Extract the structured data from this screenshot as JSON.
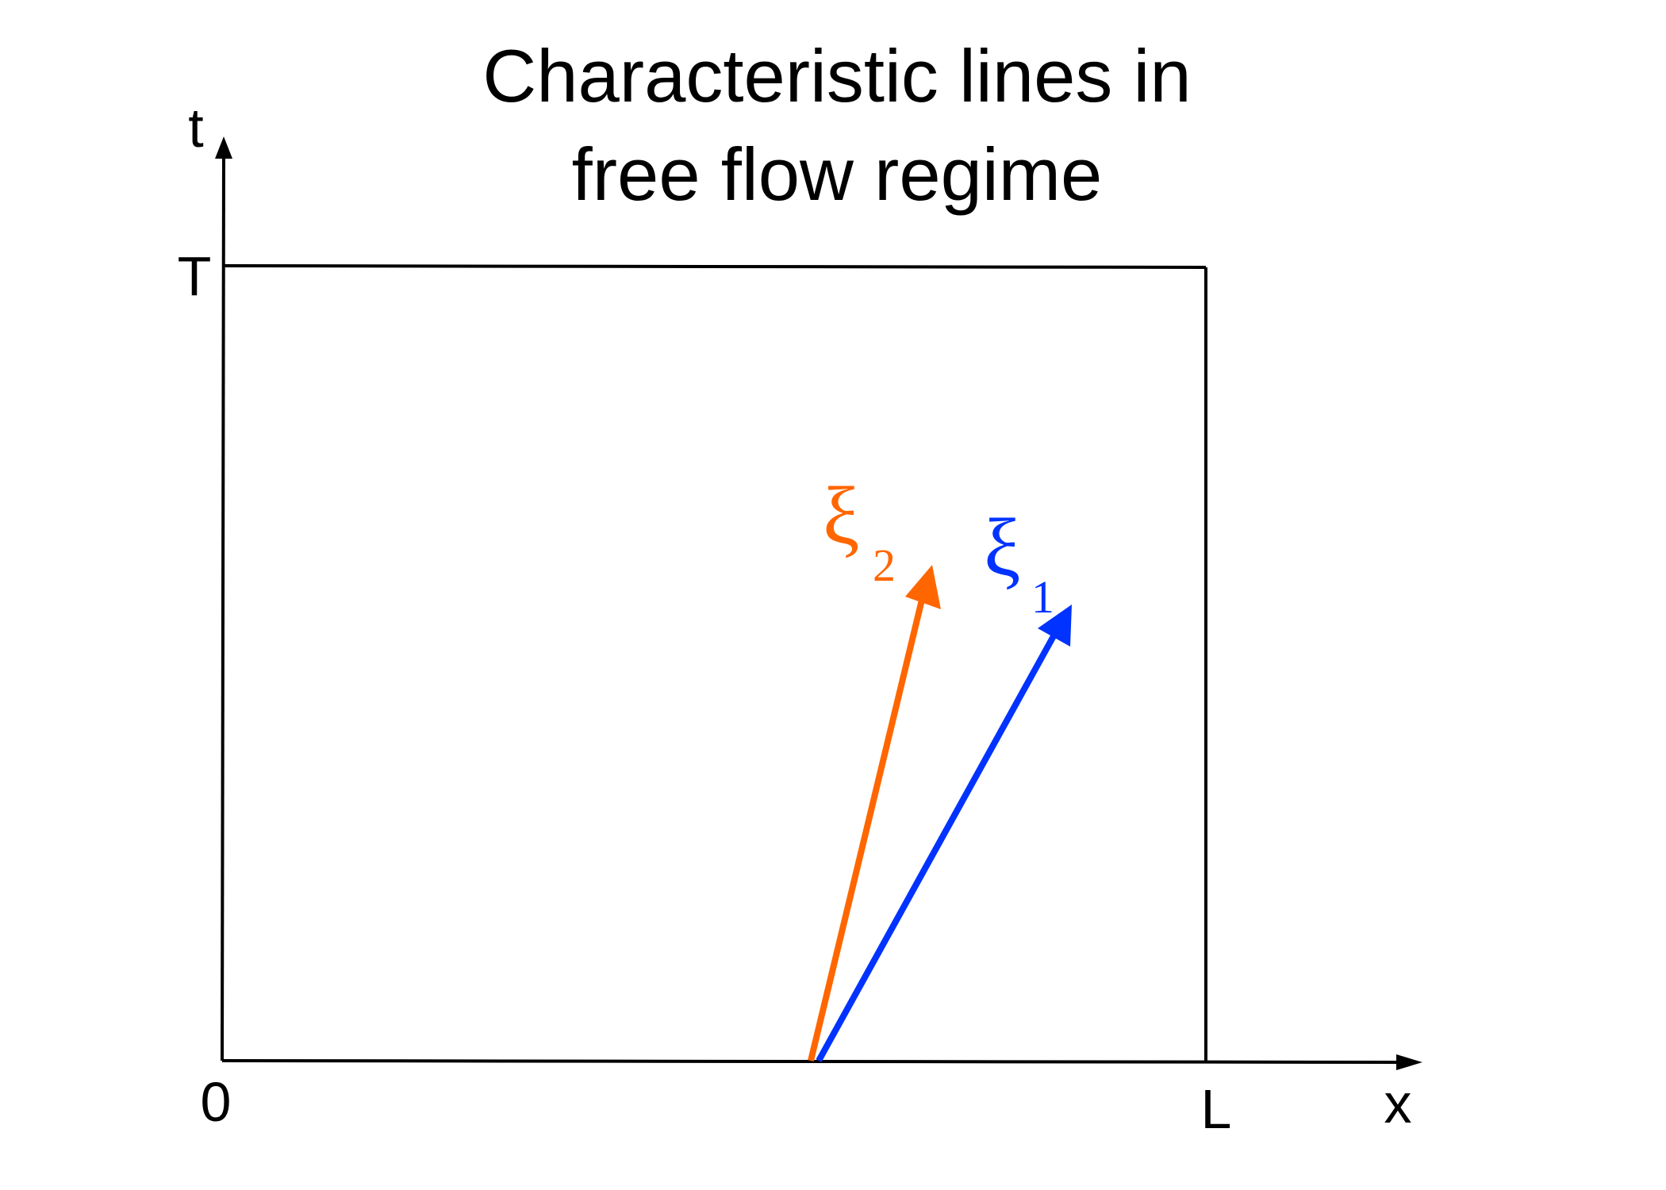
{
  "title": {
    "line1": "Characteristic lines in",
    "line2": "free flow regime"
  },
  "axes": {
    "t_label": "t",
    "x_label": "x",
    "T_label": "T",
    "origin_label": "0",
    "L_label": "L"
  },
  "characteristics": [
    {
      "symbol": "ξ",
      "subscript": "2",
      "color": "#ff6600"
    },
    {
      "symbol": "ξ",
      "subscript": "1",
      "color": "#0033ff"
    }
  ],
  "colors": {
    "axis": "#000000",
    "xi1": "#0033ff",
    "xi2": "#ff6600"
  }
}
